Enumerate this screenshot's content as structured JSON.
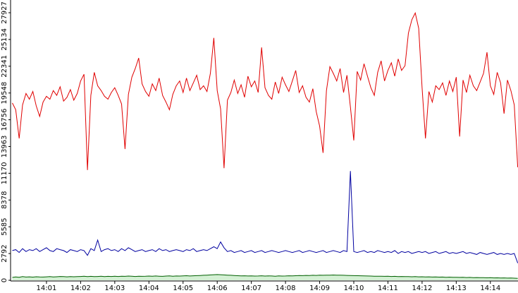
{
  "chart_data": {
    "type": "line",
    "categories": [
      null,
      null,
      null,
      null,
      null,
      null,
      null,
      null,
      null,
      null,
      "14:01",
      null,
      null,
      null,
      null,
      null,
      null,
      null,
      null,
      null,
      "14:02",
      null,
      null,
      null,
      null,
      null,
      null,
      null,
      null,
      null,
      "14:03",
      null,
      null,
      null,
      null,
      null,
      null,
      null,
      null,
      null,
      "14:04",
      null,
      null,
      null,
      null,
      null,
      null,
      null,
      null,
      null,
      "14:05",
      null,
      null,
      null,
      null,
      null,
      null,
      null,
      null,
      null,
      "14:06",
      null,
      null,
      null,
      null,
      null,
      null,
      null,
      null,
      null,
      "14:07",
      null,
      null,
      null,
      null,
      null,
      null,
      null,
      null,
      null,
      "14:08",
      null,
      null,
      null,
      null,
      null,
      null,
      null,
      null,
      null,
      "14:09",
      null,
      null,
      null,
      null,
      null,
      null,
      null,
      null,
      null,
      "14:10",
      null,
      null,
      null,
      null,
      null,
      null,
      null,
      null,
      null,
      "14:11",
      null,
      null,
      null,
      null,
      null,
      null,
      null,
      null,
      null,
      "14:12",
      null,
      null,
      null,
      null,
      null,
      null,
      null,
      null,
      null,
      "14:13",
      null,
      null,
      null,
      null,
      null,
      null,
      null,
      null,
      null,
      "14:14",
      null,
      null,
      null,
      null,
      null,
      null,
      null,
      null
    ],
    "series": [
      {
        "color": "#e00000",
        "values": [
          18500,
          17800,
          14800,
          18300,
          19500,
          18900,
          19700,
          18200,
          17100,
          18600,
          19200,
          18900,
          19800,
          19300,
          20200,
          18700,
          19100,
          19900,
          18800,
          19500,
          20800,
          21500,
          11500,
          19300,
          21700,
          20300,
          19800,
          19200,
          18900,
          19600,
          20100,
          19300,
          18400,
          13700,
          19400,
          21200,
          22100,
          23200,
          20500,
          19700,
          19200,
          20500,
          19800,
          21100,
          19300,
          18600,
          17800,
          19400,
          20300,
          20800,
          19600,
          21100,
          19800,
          20600,
          21400,
          19900,
          20300,
          19700,
          21600,
          25300,
          19800,
          17900,
          11700,
          18800,
          19600,
          20900,
          19500,
          20400,
          19100,
          21300,
          20200,
          20800,
          19600,
          24300,
          20100,
          19300,
          18900,
          20700,
          19500,
          21200,
          20400,
          19700,
          20800,
          21900,
          19600,
          20300,
          19100,
          18600,
          20000,
          17600,
          16100,
          13300,
          19800,
          22300,
          21600,
          20800,
          22100,
          19600,
          21400,
          18100,
          14600,
          21800,
          20900,
          22600,
          21300,
          20100,
          19300,
          21700,
          22900,
          20800,
          21900,
          22700,
          21300,
          23100,
          21900,
          22400,
          25800,
          27200,
          27900,
          26300,
          20100,
          14800,
          19700,
          18600,
          20300,
          19900,
          20600,
          19300,
          20800,
          19700,
          21200,
          15000,
          20900,
          19600,
          21400,
          20300,
          19800,
          20700,
          21600,
          23800,
          20300,
          19400,
          21700,
          20600,
          17400,
          20900,
          19800,
          18300,
          11800
        ]
      },
      {
        "color": "#0000a0",
        "values": [
          3100,
          3200,
          2900,
          3300,
          3000,
          3200,
          3100,
          3300,
          3000,
          3200,
          3400,
          3100,
          3000,
          3300,
          3200,
          3100,
          2900,
          3200,
          3100,
          3000,
          3200,
          3100,
          2600,
          3300,
          3100,
          4200,
          3000,
          3200,
          3300,
          3100,
          3200,
          3000,
          3300,
          3100,
          3400,
          3200,
          3000,
          3100,
          3200,
          3000,
          3100,
          3200,
          3000,
          3300,
          3100,
          3200,
          3000,
          3100,
          3200,
          3100,
          3000,
          3200,
          3100,
          3300,
          3000,
          3100,
          3200,
          3100,
          3300,
          3500,
          3300,
          4000,
          3400,
          3000,
          3100,
          2900,
          3000,
          3100,
          2900,
          3000,
          3100,
          2900,
          3000,
          3100,
          2900,
          3000,
          3100,
          3000,
          2900,
          3000,
          3100,
          3000,
          2900,
          3000,
          3100,
          2900,
          3000,
          3100,
          3000,
          2900,
          3000,
          3100,
          2900,
          3000,
          3100,
          3000,
          2900,
          3100,
          3000,
          11400,
          3000,
          2900,
          3000,
          3100,
          2900,
          3000,
          2900,
          3100,
          3000,
          2900,
          3000,
          2900,
          3100,
          2800,
          3000,
          2900,
          3000,
          2800,
          2900,
          3000,
          2900,
          3000,
          2800,
          2900,
          3000,
          2800,
          2900,
          3000,
          2800,
          2900,
          2800,
          2900,
          3000,
          2800,
          2900,
          2800,
          2700,
          2900,
          2800,
          2700,
          2800,
          2900,
          2700,
          2800,
          2700,
          2800,
          2700,
          2800,
          1800
        ]
      },
      {
        "color": "#006000",
        "fill": "#d4f0d4",
        "values": [
          300,
          350,
          320,
          380,
          340,
          360,
          330,
          370,
          350,
          340,
          360,
          380,
          350,
          370,
          400,
          380,
          360,
          390,
          370,
          380,
          400,
          420,
          390,
          410,
          380,
          400,
          420,
          390,
          410,
          400,
          420,
          400,
          430,
          410,
          440,
          420,
          400,
          430,
          410,
          420,
          440,
          420,
          450,
          430,
          410,
          440,
          460,
          430,
          450,
          440,
          460,
          480,
          450,
          470,
          490,
          500,
          520,
          540,
          560,
          580,
          600,
          580,
          560,
          540,
          520,
          500,
          480,
          460,
          470,
          450,
          460,
          440,
          450,
          470,
          440,
          460,
          450,
          430,
          460,
          440,
          450,
          470,
          460,
          480,
          500,
          490,
          510,
          500,
          520,
          510,
          530,
          520,
          540,
          530,
          550,
          540,
          530,
          520,
          510,
          500,
          490,
          480,
          470,
          460,
          450,
          440,
          430,
          420,
          430,
          410,
          420,
          400,
          410,
          390,
          400,
          380,
          390,
          370,
          380,
          360,
          370,
          350,
          360,
          340,
          350,
          330,
          340,
          320,
          330,
          310,
          320,
          300,
          310,
          290,
          300,
          280,
          290,
          270,
          280,
          260,
          270,
          250,
          260,
          240,
          250,
          230,
          240,
          220,
          200
        ]
      }
    ],
    "ylim": [
      0,
      27927
    ],
    "yticks": [
      0,
      2792,
      5585,
      8378,
      11170,
      13963,
      16756,
      19548,
      22341,
      25134,
      27927
    ]
  }
}
